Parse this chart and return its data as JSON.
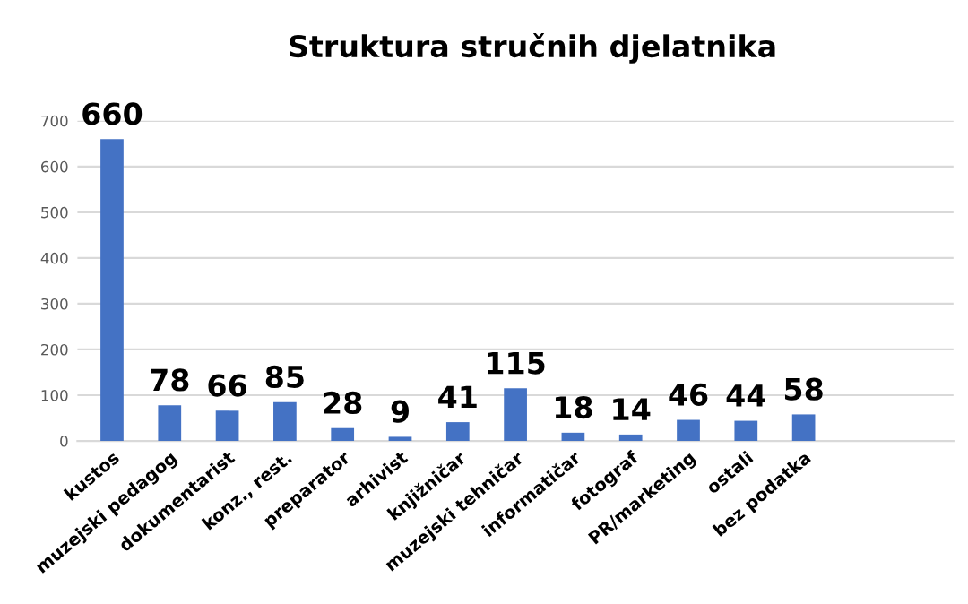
{
  "chart_data": {
    "type": "bar",
    "title": "Struktura stručnih djelatnika",
    "categories": [
      "kustos",
      "muzejski pedagog",
      "dokumentarist",
      "konz., rest.",
      "preparator",
      "arhivist",
      "knjižničar",
      "muzejski tehničar",
      "informatičar",
      "fotograf",
      "PR/marketing",
      "ostali",
      "bez podatka",
      null,
      null
    ],
    "values": [
      660,
      78,
      66,
      85,
      28,
      9,
      41,
      115,
      18,
      14,
      46,
      44,
      58,
      null,
      null
    ],
    "color": "#4472c4",
    "ylim": [
      0,
      700
    ],
    "yticks": [
      0,
      100,
      200,
      300,
      400,
      500,
      600,
      700
    ],
    "grid": "y",
    "data_labels": true
  }
}
